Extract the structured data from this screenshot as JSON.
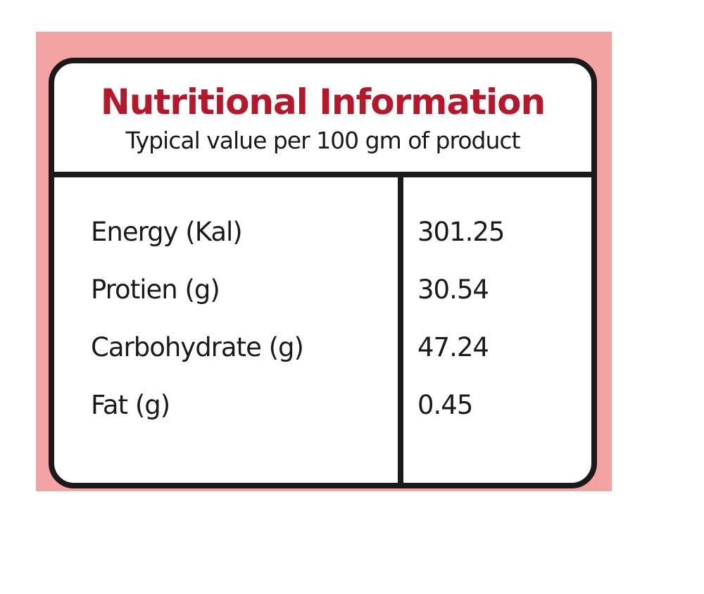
{
  "header": {
    "title": "Nutritional Information",
    "subtitle": "Typical value per 100 gm of product"
  },
  "table": {
    "rows": [
      [
        "Energy (Kal)",
        "301.25"
      ],
      [
        "Protien (g)",
        "30.54"
      ],
      [
        "Carbohydrate (g)",
        "47.24"
      ],
      [
        "Fat (g)",
        "0.45"
      ]
    ]
  }
}
